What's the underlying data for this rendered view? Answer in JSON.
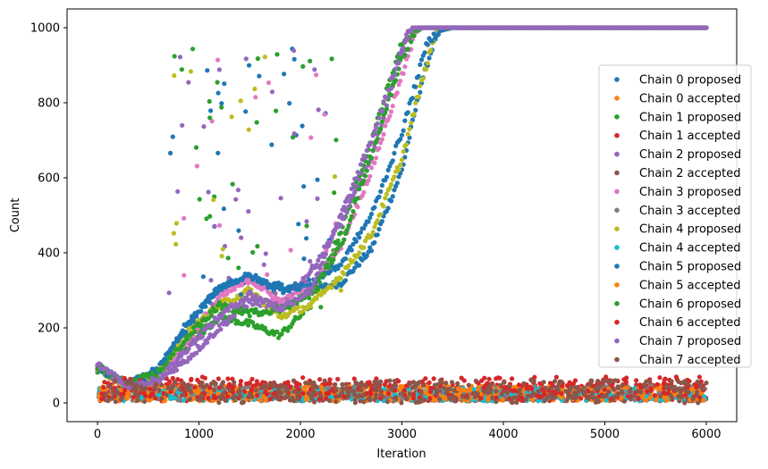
{
  "chart_data": {
    "type": "scatter",
    "title": "",
    "xlabel": "Iteration",
    "ylabel": "Count",
    "xlim": [
      -300,
      6300
    ],
    "ylim": [
      -50,
      1050
    ],
    "xticks": [
      0,
      1000,
      2000,
      3000,
      4000,
      5000,
      6000
    ],
    "yticks": [
      0,
      200,
      400,
      600,
      800,
      1000
    ],
    "grid": false,
    "legend_position": "center-right",
    "series": [
      {
        "name": "Chain 0 proposed",
        "color": "#1f77b4",
        "kind": "proposed",
        "curve": [
          [
            0,
            95
          ],
          [
            300,
            50
          ],
          [
            600,
            90
          ],
          [
            900,
            220
          ],
          [
            1200,
            300
          ],
          [
            1500,
            330
          ],
          [
            1800,
            310
          ],
          [
            2100,
            300
          ],
          [
            2400,
            320
          ],
          [
            2700,
            410
          ],
          [
            3000,
            620
          ],
          [
            3200,
            860
          ],
          [
            3350,
            990
          ],
          [
            3500,
            1000
          ],
          [
            6000,
            1000
          ]
        ]
      },
      {
        "name": "Chain 0 accepted",
        "color": "#ff7f0e",
        "kind": "accepted",
        "band": [
          5,
          45
        ]
      },
      {
        "name": "Chain 1 proposed",
        "color": "#2ca02c",
        "kind": "proposed",
        "curve": [
          [
            0,
            90
          ],
          [
            300,
            45
          ],
          [
            600,
            70
          ],
          [
            900,
            160
          ],
          [
            1200,
            230
          ],
          [
            1500,
            210
          ],
          [
            1800,
            180
          ],
          [
            2100,
            260
          ],
          [
            2400,
            460
          ],
          [
            2700,
            700
          ],
          [
            3000,
            960
          ],
          [
            3200,
            1000
          ],
          [
            6000,
            1000
          ]
        ]
      },
      {
        "name": "Chain 1 accepted",
        "color": "#d62728",
        "kind": "accepted",
        "band": [
          5,
          55
        ]
      },
      {
        "name": "Chain 2 proposed",
        "color": "#9467bd",
        "kind": "proposed",
        "curve": [
          [
            0,
            100
          ],
          [
            300,
            40
          ],
          [
            600,
            60
          ],
          [
            900,
            120
          ],
          [
            1200,
            200
          ],
          [
            1500,
            270
          ],
          [
            1800,
            260
          ],
          [
            2100,
            350
          ],
          [
            2400,
            480
          ],
          [
            2700,
            650
          ],
          [
            2900,
            840
          ],
          [
            3050,
            990
          ],
          [
            3200,
            1000
          ],
          [
            6000,
            1000
          ]
        ]
      },
      {
        "name": "Chain 2 accepted",
        "color": "#8c564b",
        "kind": "accepted",
        "band": [
          5,
          40
        ]
      },
      {
        "name": "Chain 3 proposed",
        "color": "#e377c2",
        "kind": "proposed",
        "curve": [
          [
            0,
            92
          ],
          [
            300,
            45
          ],
          [
            600,
            70
          ],
          [
            900,
            170
          ],
          [
            1200,
            280
          ],
          [
            1500,
            330
          ],
          [
            1800,
            270
          ],
          [
            2100,
            300
          ],
          [
            2400,
            420
          ],
          [
            2700,
            620
          ],
          [
            3000,
            870
          ],
          [
            3150,
            1000
          ],
          [
            6000,
            1000
          ]
        ]
      },
      {
        "name": "Chain 3 accepted",
        "color": "#7f7f7f",
        "kind": "accepted",
        "band": [
          5,
          45
        ]
      },
      {
        "name": "Chain 4 proposed",
        "color": "#bcbd22",
        "kind": "proposed",
        "curve": [
          [
            0,
            90
          ],
          [
            300,
            45
          ],
          [
            600,
            75
          ],
          [
            900,
            190
          ],
          [
            1200,
            260
          ],
          [
            1500,
            300
          ],
          [
            1800,
            230
          ],
          [
            2100,
            260
          ],
          [
            2400,
            340
          ],
          [
            2700,
            450
          ],
          [
            3000,
            650
          ],
          [
            3200,
            860
          ],
          [
            3350,
            1000
          ],
          [
            6000,
            1000
          ]
        ]
      },
      {
        "name": "Chain 4 accepted",
        "color": "#17becf",
        "kind": "accepted",
        "band": [
          5,
          40
        ]
      },
      {
        "name": "Chain 5 proposed",
        "color": "#1f77b4",
        "kind": "proposed",
        "curve": [
          [
            0,
            93
          ],
          [
            300,
            48
          ],
          [
            600,
            85
          ],
          [
            900,
            210
          ],
          [
            1200,
            310
          ],
          [
            1500,
            340
          ],
          [
            1800,
            300
          ],
          [
            2100,
            320
          ],
          [
            2400,
            370
          ],
          [
            2700,
            500
          ],
          [
            3000,
            720
          ],
          [
            3250,
            960
          ],
          [
            3400,
            1000
          ],
          [
            6000,
            1000
          ]
        ]
      },
      {
        "name": "Chain 5 accepted",
        "color": "#ff7f0e",
        "kind": "accepted",
        "band": [
          5,
          45
        ]
      },
      {
        "name": "Chain 6 proposed",
        "color": "#2ca02c",
        "kind": "proposed",
        "curve": [
          [
            0,
            95
          ],
          [
            300,
            50
          ],
          [
            600,
            80
          ],
          [
            900,
            180
          ],
          [
            1200,
            260
          ],
          [
            1500,
            240
          ],
          [
            1800,
            250
          ],
          [
            2100,
            290
          ],
          [
            2400,
            420
          ],
          [
            2700,
            660
          ],
          [
            3000,
            920
          ],
          [
            3150,
            1000
          ],
          [
            6000,
            1000
          ]
        ]
      },
      {
        "name": "Chain 6 accepted",
        "color": "#d62728",
        "kind": "accepted",
        "band": [
          10,
          70
        ]
      },
      {
        "name": "Chain 7 proposed",
        "color": "#9467bd",
        "kind": "proposed",
        "curve": [
          [
            0,
            100
          ],
          [
            300,
            45
          ],
          [
            600,
            60
          ],
          [
            900,
            150
          ],
          [
            1200,
            230
          ],
          [
            1500,
            290
          ],
          [
            1800,
            250
          ],
          [
            2100,
            300
          ],
          [
            2400,
            500
          ],
          [
            2700,
            700
          ],
          [
            2950,
            900
          ],
          [
            3100,
            1000
          ],
          [
            6000,
            1000
          ]
        ]
      },
      {
        "name": "Chain 7 accepted",
        "color": "#8c564b",
        "kind": "accepted",
        "band": [
          0,
          60
        ]
      }
    ]
  }
}
